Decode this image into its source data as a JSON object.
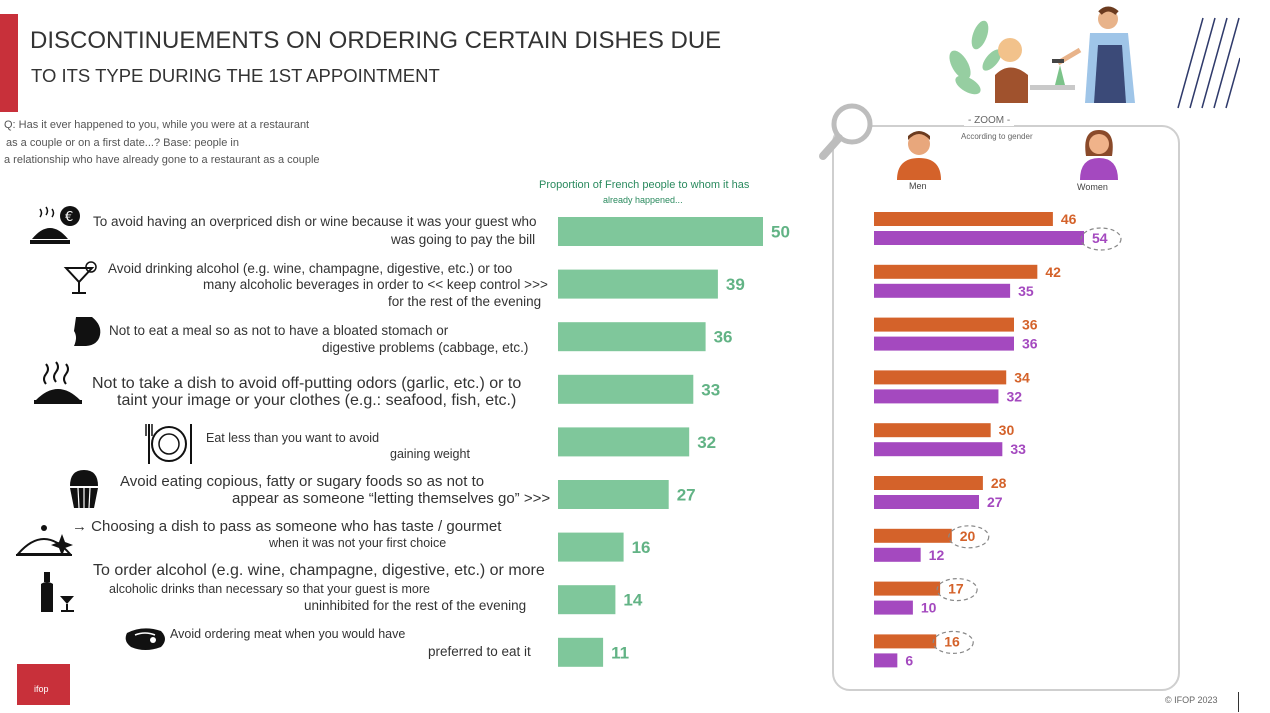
{
  "header": {
    "title_line1": "DISCONTINUEMENTS ON ORDERING CERTAIN DISHES DUE",
    "title_line2": "TO ITS TYPE DURING THE 1ST APPOINTMENT"
  },
  "question": {
    "line1": "Q: Has it ever happened to you, while you were at a restaurant",
    "line2": "as a couple or on a first date...? Base: people in",
    "line3": "a relationship who have already gone to a restaurant as a couple"
  },
  "colors": {
    "main_bar": "#7fc79b",
    "main_value": "#62b385",
    "men": "#d4622a",
    "women": "#a449bf",
    "accent": "#c8303a"
  },
  "zoom": {
    "title": "- ZOOM -",
    "subtitle": "According to gender",
    "men_label": "Men",
    "women_label": "Women"
  },
  "chart_data": [
    {
      "type": "bar",
      "orientation": "horizontal",
      "title": "Proportion of French people to whom it has",
      "subtitle": "already happened...",
      "categories": [
        "To avoid having an overpriced dish or wine because it was your guest who was going to pay the bill",
        "Avoid drinking alcohol (e.g. wine, champagne, digestive, etc.) or too many alcoholic beverages in order to << keep control >>> for the rest of the evening",
        "Not to eat a meal so as not to have a bloated stomach or digestive problems (cabbage, etc.)",
        "Not to take a dish to avoid off-putting odors (garlic, etc.) or to taint your image or your clothes (e.g.: seafood, fish, etc.)",
        "Eat less than you want to avoid gaining weight",
        "Avoid eating copious, fatty or sugary foods so as not to appear as someone “letting themselves go” >>>",
        "Choosing a dish to pass as someone who has taste / gourmet when it was not your first choice",
        "To order alcohol (e.g. wine, champagne, digestive, etc.) or more alcoholic drinks than necessary so that your guest is more uninhibited for the rest of the evening",
        "Avoid ordering meat when you would have preferred to eat it"
      ],
      "values": [
        50,
        39,
        36,
        33,
        32,
        27,
        16,
        14,
        11
      ],
      "xlim": [
        0,
        60
      ]
    },
    {
      "type": "bar",
      "orientation": "horizontal",
      "title": "- ZOOM -",
      "subtitle": "According to gender",
      "series": [
        {
          "name": "Men",
          "values": [
            46,
            42,
            36,
            34,
            30,
            28,
            20,
            17,
            16
          ]
        },
        {
          "name": "Women",
          "values": [
            54,
            35,
            36,
            32,
            33,
            27,
            12,
            10,
            6
          ]
        }
      ],
      "xlim": [
        0,
        60
      ],
      "highlighted": [
        "Women 54",
        "Men 20",
        "Men 17",
        "Men 16"
      ]
    }
  ],
  "rows": [
    {
      "icon": "cloche-euro-icon",
      "line1": "To avoid having an overpriced dish or wine because it was your guest who",
      "line2": "was going to pay the bill",
      "line3": ""
    },
    {
      "icon": "cocktail-icon",
      "line1": "Avoid drinking alcohol (e.g. wine, champagne, digestive, etc.) or too",
      "line2": "many alcoholic beverages in order to << keep control >>>",
      "line3": "for the rest of the evening"
    },
    {
      "icon": "bloated-stomach-icon",
      "line1": "Not to eat a meal so as not to have a bloated stomach or",
      "line2": "digestive problems (cabbage, etc.)",
      "line3": ""
    },
    {
      "icon": "steaming-dish-icon",
      "line1": "Not to take a dish to avoid off-putting odors (garlic, etc.) or to",
      "line2": "taint your image or your clothes (e.g.: seafood, fish, etc.)",
      "line3": ""
    },
    {
      "icon": "plate-cutlery-icon",
      "line1": "Eat less than you want to avoid",
      "line2": "gaining weight",
      "line3": ""
    },
    {
      "icon": "cupcake-icon",
      "line1": "Avoid eating copious, fatty or sugary foods so as not to",
      "line2": "appear as someone “letting themselves go” >>>",
      "line3": ""
    },
    {
      "icon": "sparkle-cloche-icon",
      "line1": "→ Choosing a dish to pass as someone who has taste / gourmet",
      "line2": "when it was not your first choice",
      "line3": ""
    },
    {
      "icon": "wine-bottle-icon",
      "line1": "To order alcohol (e.g. wine, champagne, digestive, etc.) or more",
      "line2": "alcoholic drinks than necessary so that your guest is more",
      "line3": "uninhibited for the rest of the evening"
    },
    {
      "icon": "steak-icon",
      "line1": "Avoid ordering meat when you would have",
      "line2": "preferred to eat it",
      "line3": ""
    }
  ],
  "footer": {
    "copyright": "© IFOP 2023",
    "logo_text": "ifop"
  }
}
